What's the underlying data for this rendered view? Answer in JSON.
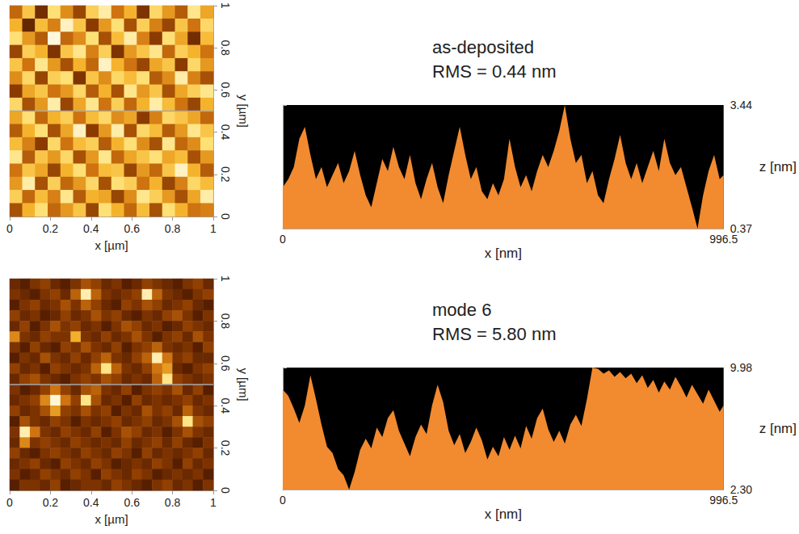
{
  "chart_data": [
    {
      "type": "heatmap",
      "xlabel": "x [µm]",
      "ylabel": "y [µm]",
      "xlim": [
        0,
        1
      ],
      "ylim": [
        0,
        1
      ],
      "xticks": [
        0,
        0.2,
        0.4,
        0.6,
        0.8,
        1
      ],
      "yticks": [
        0,
        0.2,
        0.4,
        0.6,
        0.8,
        1
      ],
      "zlim": [
        0.37,
        3.44
      ],
      "profile_y": 0.5,
      "cells": [
        [
          1.8,
          2.6,
          1.2,
          2.9,
          2.1,
          1.5,
          2.7,
          3.1,
          1.9,
          2.4,
          1.3,
          2.8,
          2.2,
          1.7,
          3.0,
          2.3
        ],
        [
          2.4,
          1.1,
          2.5,
          2.0,
          3.2,
          2.6,
          1.4,
          2.2,
          2.9,
          1.6,
          2.7,
          2.0,
          1.5,
          2.6,
          1.9,
          2.8
        ],
        [
          2.9,
          2.2,
          1.7,
          3.3,
          1.8,
          2.1,
          2.9,
          1.6,
          2.5,
          3.1,
          2.0,
          1.4,
          2.9,
          2.3,
          1.2,
          2.5
        ],
        [
          1.5,
          2.7,
          2.4,
          1.3,
          2.6,
          3.0,
          2.0,
          2.7,
          1.3,
          2.2,
          2.6,
          3.0,
          1.8,
          2.7,
          2.4,
          1.9
        ],
        [
          2.6,
          1.9,
          3.0,
          2.2,
          1.6,
          2.4,
          1.8,
          3.2,
          2.4,
          1.9,
          1.5,
          2.3,
          2.6,
          1.4,
          2.8,
          2.2
        ],
        [
          2.1,
          2.8,
          1.5,
          2.7,
          2.9,
          1.3,
          2.6,
          2.1,
          2.8,
          2.5,
          2.9,
          1.7,
          2.1,
          3.1,
          2.0,
          1.6
        ],
        [
          1.4,
          2.3,
          2.6,
          1.9,
          2.2,
          2.8,
          1.7,
          2.4,
          1.6,
          3.0,
          2.2,
          2.6,
          1.6,
          2.3,
          2.7,
          3.0
        ],
        [
          2.8,
          1.6,
          2.2,
          3.1,
          1.5,
          2.3,
          3.0,
          1.9,
          2.7,
          1.8,
          2.4,
          3.1,
          2.5,
          1.9,
          1.5,
          2.4
        ],
        [
          2.3,
          2.9,
          1.8,
          2.4,
          2.7,
          1.9,
          2.5,
          2.8,
          2.1,
          2.3,
          1.4,
          2.0,
          2.8,
          2.6,
          2.3,
          1.8
        ],
        [
          1.7,
          2.4,
          2.9,
          1.6,
          2.3,
          3.2,
          1.4,
          2.2,
          3.1,
          1.6,
          2.8,
          2.5,
          1.7,
          2.2,
          3.0,
          2.6
        ],
        [
          2.5,
          2.0,
          1.4,
          2.8,
          1.9,
          2.5,
          2.7,
          1.7,
          2.4,
          2.9,
          2.1,
          1.6,
          3.0,
          1.8,
          2.1,
          2.9
        ],
        [
          3.0,
          1.7,
          2.6,
          2.2,
          2.8,
          1.6,
          2.2,
          3.0,
          1.8,
          2.3,
          2.6,
          2.9,
          2.3,
          2.5,
          1.6,
          2.2
        ],
        [
          1.9,
          2.6,
          2.3,
          1.5,
          2.4,
          2.9,
          1.9,
          2.5,
          2.6,
          1.5,
          2.2,
          1.8,
          2.6,
          3.2,
          2.4,
          1.7
        ],
        [
          2.2,
          3.1,
          1.6,
          2.7,
          1.8,
          2.2,
          2.8,
          1.6,
          2.9,
          2.7,
          1.9,
          2.4,
          1.5,
          2.0,
          2.8,
          2.5
        ],
        [
          2.7,
          1.8,
          2.5,
          2.0,
          3.0,
          1.7,
          2.4,
          2.3,
          1.5,
          2.1,
          3.0,
          2.7,
          2.2,
          1.6,
          2.3,
          3.1
        ],
        [
          1.6,
          2.4,
          2.9,
          1.8,
          2.2,
          2.6,
          1.5,
          2.9,
          2.4,
          1.8,
          2.5,
          1.6,
          2.9,
          2.4,
          1.9,
          2.0
        ]
      ]
    },
    {
      "type": "area",
      "title": "as-deposited",
      "subtitle": "RMS = 0.44 nm",
      "xlabel": "x [nm]",
      "ylabel": "z [nm]",
      "color": "#f28a30",
      "xlim": [
        0,
        996.5
      ],
      "ylim": [
        0.37,
        3.44
      ],
      "xticks": [
        0,
        996.5
      ],
      "yticks": [
        0.37,
        3.44
      ],
      "x": [
        0,
        12.5,
        25,
        37.5,
        50,
        62.5,
        75,
        87.5,
        100,
        112.5,
        125,
        137.5,
        150,
        162.5,
        175,
        187.5,
        200,
        212.5,
        225,
        237.5,
        250,
        262.5,
        275,
        287.5,
        300,
        312.5,
        325,
        337.5,
        350,
        362.5,
        375,
        387.5,
        400,
        412.5,
        425,
        437.5,
        450,
        462.5,
        475,
        487.5,
        500,
        512.5,
        525,
        537.5,
        550,
        562.5,
        575,
        587.5,
        600,
        612.5,
        625,
        637.5,
        650,
        662.5,
        675,
        687.5,
        700,
        712.5,
        725,
        737.5,
        750,
        762.5,
        775,
        787.5,
        800,
        812.5,
        825,
        837.5,
        850,
        862.5,
        875,
        887.5,
        900,
        912.5,
        925,
        937.5,
        950,
        962.5,
        975,
        987.5,
        996.5
      ],
      "values": [
        1.4,
        1.6,
        1.9,
        2.6,
        2.9,
        2.2,
        1.6,
        1.9,
        1.4,
        1.7,
        2.0,
        1.5,
        1.8,
        2.3,
        1.7,
        1.2,
        0.9,
        1.5,
        2.1,
        1.8,
        2.4,
        1.9,
        1.6,
        2.2,
        1.5,
        1.1,
        1.6,
        2.0,
        1.4,
        1.0,
        1.7,
        2.3,
        2.9,
        2.2,
        1.6,
        1.9,
        1.3,
        1.1,
        1.5,
        1.2,
        1.6,
        2.6,
        1.9,
        1.4,
        1.7,
        1.3,
        1.8,
        2.2,
        1.9,
        2.3,
        2.8,
        3.44,
        2.6,
        2.0,
        2.2,
        1.5,
        1.8,
        1.2,
        1.0,
        1.6,
        2.1,
        2.7,
        2.0,
        1.6,
        2.0,
        1.5,
        1.9,
        2.3,
        1.8,
        2.6,
        2.0,
        1.7,
        1.9,
        1.4,
        0.9,
        0.37,
        1.2,
        1.8,
        2.2,
        1.6,
        1.7
      ]
    },
    {
      "type": "heatmap",
      "xlabel": "x [µm]",
      "ylabel": "y [µm]",
      "xlim": [
        0,
        1
      ],
      "ylim": [
        0,
        1
      ],
      "xticks": [
        0,
        0.2,
        0.4,
        0.6,
        0.8,
        1
      ],
      "yticks": [
        0,
        0.2,
        0.4,
        0.6,
        0.8,
        1
      ],
      "zlim": [
        0,
        20
      ],
      "profile_y": 0.5,
      "cells": [
        [
          5,
          4,
          6,
          7,
          5,
          4,
          6,
          8,
          7,
          5,
          6,
          4,
          5,
          7,
          6,
          5,
          4,
          6,
          7,
          5
        ],
        [
          6,
          5,
          4,
          6,
          7,
          5,
          9,
          18,
          9,
          6,
          5,
          6,
          7,
          18,
          9,
          6,
          5,
          4,
          6,
          7
        ],
        [
          4,
          6,
          7,
          5,
          6,
          8,
          6,
          9,
          7,
          5,
          4,
          7,
          6,
          8,
          7,
          5,
          6,
          7,
          5,
          4
        ],
        [
          7,
          5,
          6,
          4,
          5,
          7,
          5,
          6,
          8,
          6,
          7,
          5,
          4,
          6,
          5,
          7,
          8,
          6,
          4,
          6
        ],
        [
          5,
          7,
          4,
          6,
          8,
          6,
          7,
          5,
          6,
          4,
          6,
          8,
          7,
          5,
          6,
          4,
          5,
          7,
          6,
          5
        ],
        [
          11,
          6,
          5,
          7,
          6,
          6,
          13,
          6,
          5,
          7,
          5,
          6,
          8,
          6,
          4,
          6,
          7,
          5,
          8,
          6
        ],
        [
          6,
          4,
          7,
          5,
          4,
          7,
          6,
          8,
          6,
          5,
          7,
          4,
          6,
          7,
          9,
          6,
          5,
          6,
          4,
          7
        ],
        [
          4,
          6,
          5,
          8,
          6,
          5,
          7,
          5,
          7,
          9,
          6,
          5,
          7,
          9,
          18,
          10,
          6,
          7,
          5,
          5
        ],
        [
          7,
          5,
          6,
          4,
          7,
          6,
          5,
          6,
          9,
          17,
          9,
          6,
          5,
          7,
          10,
          12,
          5,
          4,
          6,
          7
        ],
        [
          5,
          7,
          8,
          6,
          5,
          4,
          6,
          7,
          6,
          8,
          7,
          5,
          6,
          5,
          9,
          17,
          7,
          6,
          5,
          6
        ],
        [
          6,
          4,
          5,
          7,
          10,
          7,
          5,
          8,
          9,
          6,
          5,
          7,
          4,
          6,
          7,
          6,
          8,
          5,
          7,
          4
        ],
        [
          5,
          6,
          7,
          11,
          19,
          10,
          7,
          17,
          8,
          5,
          6,
          4,
          7,
          5,
          6,
          5,
          6,
          7,
          5,
          6
        ],
        [
          7,
          5,
          6,
          8,
          12,
          7,
          6,
          8,
          6,
          7,
          4,
          6,
          5,
          8,
          6,
          7,
          5,
          9,
          6,
          5
        ],
        [
          4,
          8,
          6,
          5,
          7,
          6,
          4,
          6,
          5,
          6,
          7,
          5,
          6,
          7,
          5,
          6,
          8,
          17,
          8,
          7
        ],
        [
          6,
          18,
          10,
          6,
          5,
          7,
          6,
          5,
          7,
          4,
          6,
          8,
          7,
          5,
          6,
          4,
          6,
          8,
          6,
          5
        ],
        [
          5,
          11,
          6,
          7,
          6,
          5,
          7,
          6,
          5,
          6,
          5,
          7,
          5,
          6,
          7,
          5,
          7,
          5,
          4,
          6
        ],
        [
          7,
          5,
          4,
          6,
          7,
          6,
          5,
          7,
          6,
          5,
          7,
          6,
          4,
          7,
          5,
          6,
          5,
          6,
          7,
          5
        ],
        [
          5,
          6,
          7,
          5,
          4,
          7,
          6,
          5,
          7,
          6,
          4,
          5,
          6,
          5,
          7,
          6,
          4,
          7,
          5,
          6
        ],
        [
          6,
          4,
          5,
          7,
          6,
          5,
          7,
          6,
          4,
          7,
          6,
          5,
          7,
          6,
          4,
          5,
          6,
          5,
          6,
          4
        ],
        [
          4,
          6,
          6,
          5,
          7,
          4,
          5,
          6,
          6,
          5,
          7,
          6,
          5,
          4,
          6,
          7,
          5,
          6,
          4,
          6
        ]
      ]
    },
    {
      "type": "area",
      "title": "mode 6",
      "subtitle": "RMS = 5.80 nm",
      "xlabel": "x [nm]",
      "ylabel": "z [nm]",
      "color": "#f28a30",
      "xlim": [
        0,
        996.5
      ],
      "ylim": [
        2.3,
        9.98
      ],
      "xticks": [
        0,
        996.5
      ],
      "yticks": [
        {
          "value": 2.3,
          "label": "2.30"
        },
        9.98
      ],
      "x": [
        0,
        12.5,
        25,
        37.5,
        50,
        62.5,
        75,
        87.5,
        100,
        112.5,
        125,
        137.5,
        150,
        162.5,
        175,
        187.5,
        200,
        212.5,
        225,
        237.5,
        250,
        262.5,
        275,
        287.5,
        300,
        312.5,
        325,
        337.5,
        350,
        362.5,
        375,
        387.5,
        400,
        412.5,
        425,
        437.5,
        450,
        462.5,
        475,
        487.5,
        500,
        512.5,
        525,
        537.5,
        550,
        562.5,
        575,
        587.5,
        600,
        612.5,
        625,
        637.5,
        650,
        662.5,
        675,
        687.5,
        700,
        712.5,
        725,
        737.5,
        750,
        762.5,
        775,
        787.5,
        800,
        812.5,
        825,
        837.5,
        850,
        862.5,
        875,
        887.5,
        900,
        912.5,
        925,
        937.5,
        950,
        962.5,
        975,
        987.5,
        996.5
      ],
      "values": [
        8.6,
        8.2,
        7.4,
        6.5,
        7.6,
        9.5,
        8.0,
        6.4,
        5.0,
        4.6,
        3.6,
        3.2,
        2.3,
        3.4,
        4.8,
        5.5,
        4.9,
        6.2,
        5.6,
        6.8,
        7.3,
        6.0,
        5.2,
        4.4,
        5.6,
        6.4,
        5.8,
        7.6,
        8.9,
        7.8,
        6.0,
        5.1,
        5.8,
        4.6,
        5.3,
        6.2,
        5.4,
        4.2,
        5.0,
        4.4,
        5.6,
        4.8,
        5.7,
        4.9,
        6.3,
        5.5,
        6.8,
        7.4,
        6.1,
        5.3,
        6.0,
        5.2,
        6.4,
        7.0,
        6.3,
        8.0,
        9.98,
        9.9,
        9.6,
        9.8,
        9.4,
        9.7,
        9.3,
        9.6,
        9.0,
        9.5,
        8.7,
        9.2,
        8.4,
        9.1,
        8.6,
        9.4,
        8.8,
        8.1,
        8.9,
        8.3,
        7.7,
        8.6,
        7.9,
        7.2,
        7.6
      ]
    }
  ]
}
